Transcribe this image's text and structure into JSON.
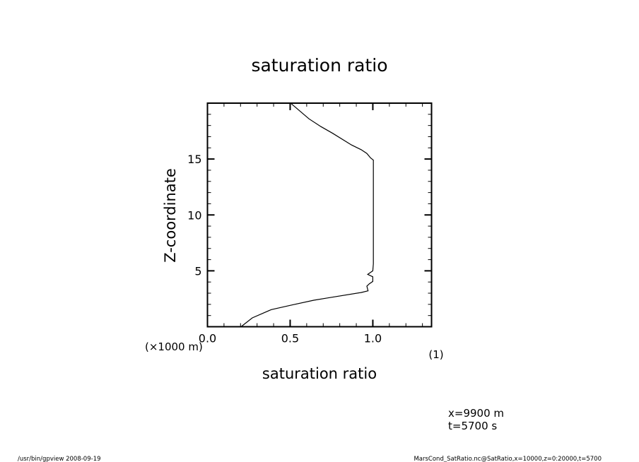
{
  "chart_data": {
    "type": "line",
    "title": "saturation ratio",
    "xlabel": "saturation ratio",
    "xunit": "(1)",
    "ylabel": "Z-coordinate",
    "yunit": "(×1000 m)",
    "xlim": [
      0.0,
      1.355
    ],
    "ylim": [
      0,
      20
    ],
    "xticks": [
      0.0,
      0.5,
      1.0
    ],
    "xtick_labels": [
      "0.0",
      "0.5",
      "1.0"
    ],
    "yticks": [
      5,
      10,
      15
    ],
    "ytick_labels": [
      "5",
      "10",
      "15"
    ],
    "x_minor_step": 0.1,
    "y_minor_step": 1,
    "grid": false,
    "series": [
      {
        "name": "saturation ratio",
        "color": "#000000",
        "points": [
          [
            0.203,
            0.0
          ],
          [
            0.271,
            0.79
          ],
          [
            0.386,
            1.53
          ],
          [
            0.514,
            1.95
          ],
          [
            0.643,
            2.37
          ],
          [
            0.729,
            2.58
          ],
          [
            0.929,
            3.06
          ],
          [
            0.971,
            3.21
          ],
          [
            0.964,
            3.63
          ],
          [
            0.979,
            3.84
          ],
          [
            1.0,
            4.05
          ],
          [
            1.0,
            4.47
          ],
          [
            0.969,
            4.68
          ],
          [
            1.0,
            5.0
          ],
          [
            1.003,
            5.63
          ],
          [
            1.003,
            6.68
          ],
          [
            1.003,
            14.9
          ],
          [
            0.986,
            15.1
          ],
          [
            0.964,
            15.5
          ],
          [
            0.929,
            15.84
          ],
          [
            0.871,
            16.26
          ],
          [
            0.757,
            17.3
          ],
          [
            0.686,
            17.9
          ],
          [
            0.614,
            18.6
          ],
          [
            0.507,
            19.95
          ]
        ]
      }
    ]
  },
  "annotations": {
    "position_x": "x=9900 m",
    "position_t": "t=5700 s",
    "footer_left": "/usr/bin/gpview  2008-09-19",
    "footer_right": "MarsCond_SatRatio.nc@SatRatio,x=10000,z=0:20000,t=5700"
  }
}
